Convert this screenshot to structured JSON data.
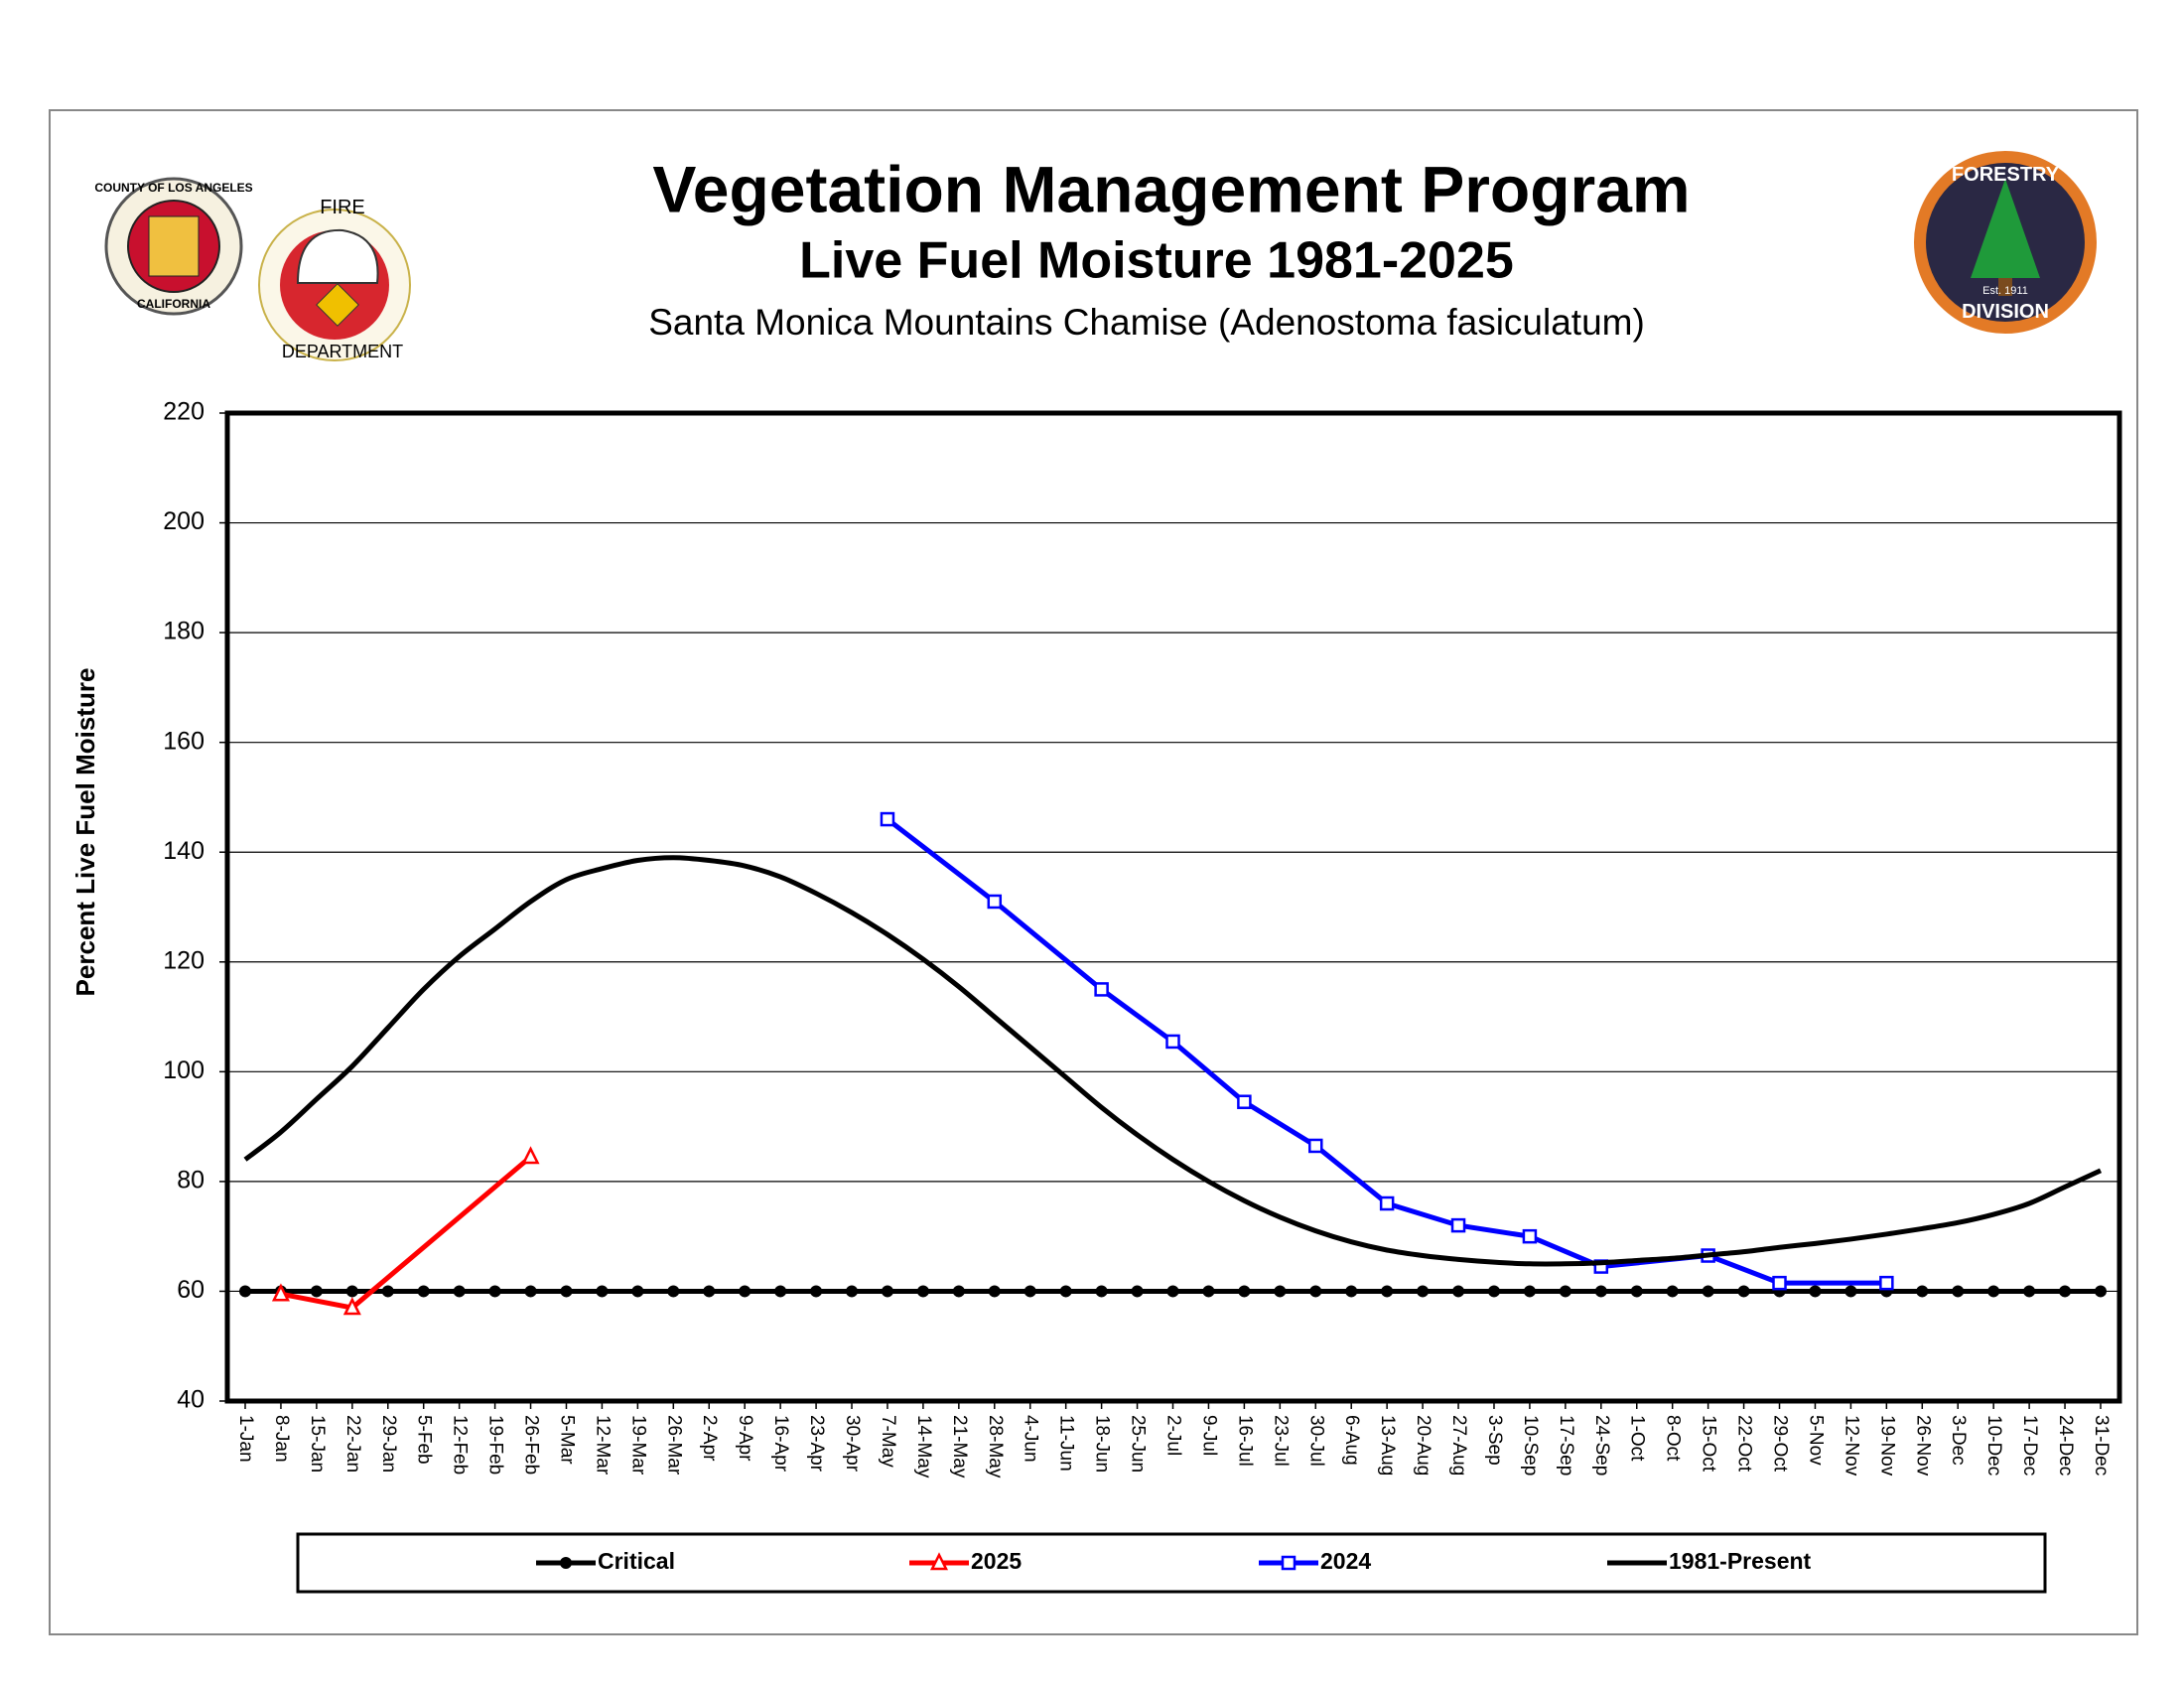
{
  "logos": {
    "county": {
      "top": "COUNTY OF LOS ANGELES",
      "bottom": "CALIFORNIA"
    },
    "fire": {
      "top": "FIRE",
      "bottom": "DEPARTMENT"
    },
    "forestry": {
      "top": "FORESTRY",
      "bottom": "DIVISION",
      "est": "Est. 1911"
    }
  },
  "chart_data": {
    "type": "line",
    "title": "Vegetation Management Program",
    "subtitle": "Live Fuel Moisture 1981-2025",
    "subtitle2": "Santa Monica Mountains Chamise (Adenostoma fasiculatum)",
    "y_label": "Percent Live Fuel Moisture",
    "categories": [
      "1-Jan",
      "8-Jan",
      "15-Jan",
      "22-Jan",
      "29-Jan",
      "5-Feb",
      "12-Feb",
      "19-Feb",
      "26-Feb",
      "5-Mar",
      "12-Mar",
      "19-Mar",
      "26-Mar",
      "2-Apr",
      "9-Apr",
      "16-Apr",
      "23-Apr",
      "30-Apr",
      "7-May",
      "14-May",
      "21-May",
      "28-May",
      "4-Jun",
      "11-Jun",
      "18-Jun",
      "25-Jun",
      "2-Jul",
      "9-Jul",
      "16-Jul",
      "23-Jul",
      "30-Jul",
      "6-Aug",
      "13-Aug",
      "20-Aug",
      "27-Aug",
      "3-Sep",
      "10-Sep",
      "17-Sep",
      "24-Sep",
      "1-Oct",
      "8-Oct",
      "15-Oct",
      "22-Oct",
      "29-Oct",
      "5-Nov",
      "12-Nov",
      "19-Nov",
      "26-Nov",
      "3-Dec",
      "10-Dec",
      "17-Dec",
      "24-Dec",
      "31-Dec"
    ],
    "series": [
      {
        "name": "Critical",
        "color": "#000000",
        "marker": "circle",
        "values": [
          60,
          60,
          60,
          60,
          60,
          60,
          60,
          60,
          60,
          60,
          60,
          60,
          60,
          60,
          60,
          60,
          60,
          60,
          60,
          60,
          60,
          60,
          60,
          60,
          60,
          60,
          60,
          60,
          60,
          60,
          60,
          60,
          60,
          60,
          60,
          60,
          60,
          60,
          60,
          60,
          60,
          60,
          60,
          60,
          60,
          60,
          60,
          60,
          60,
          60,
          60,
          60,
          60
        ]
      },
      {
        "name": "2025",
        "color": "#ff0000",
        "marker": "triangle",
        "x": [
          "8-Jan",
          "22-Jan",
          "26-Feb"
        ],
        "values": [
          59.5,
          57,
          84.5
        ]
      },
      {
        "name": "2024",
        "color": "#0000ff",
        "marker": "square",
        "x": [
          "7-May",
          "28-May",
          "18-Jun",
          "2-Jul",
          "16-Jul",
          "30-Jul",
          "13-Aug",
          "27-Aug",
          "10-Sep",
          "24-Sep",
          "15-Oct",
          "29-Oct",
          "19-Nov"
        ],
        "values": [
          146,
          131,
          115,
          105.5,
          94.5,
          86.5,
          76,
          72,
          70,
          64.5,
          66.5,
          61.5,
          61.5
        ]
      },
      {
        "name": "1981-Present",
        "color": "#000000",
        "marker": "none",
        "values": [
          84,
          89,
          95,
          101,
          108,
          115,
          121,
          126,
          131,
          135,
          137,
          138.5,
          139,
          138.5,
          137.5,
          135.5,
          132.5,
          129,
          125,
          120.5,
          115.5,
          110,
          104.5,
          99,
          93.5,
          88.5,
          84,
          80,
          76.5,
          73.5,
          71,
          69,
          67.5,
          66.5,
          65.8,
          65.3,
          65,
          65,
          65.2,
          65.6,
          66,
          66.6,
          67.2,
          68,
          68.7,
          69.5,
          70.4,
          71.4,
          72.5,
          74,
          76,
          79,
          82
        ]
      }
    ],
    "ylim": [
      40,
      220
    ],
    "yticks": [
      40,
      60,
      80,
      100,
      120,
      140,
      160,
      180,
      200,
      220
    ],
    "grid": true,
    "legend": "bottom"
  }
}
